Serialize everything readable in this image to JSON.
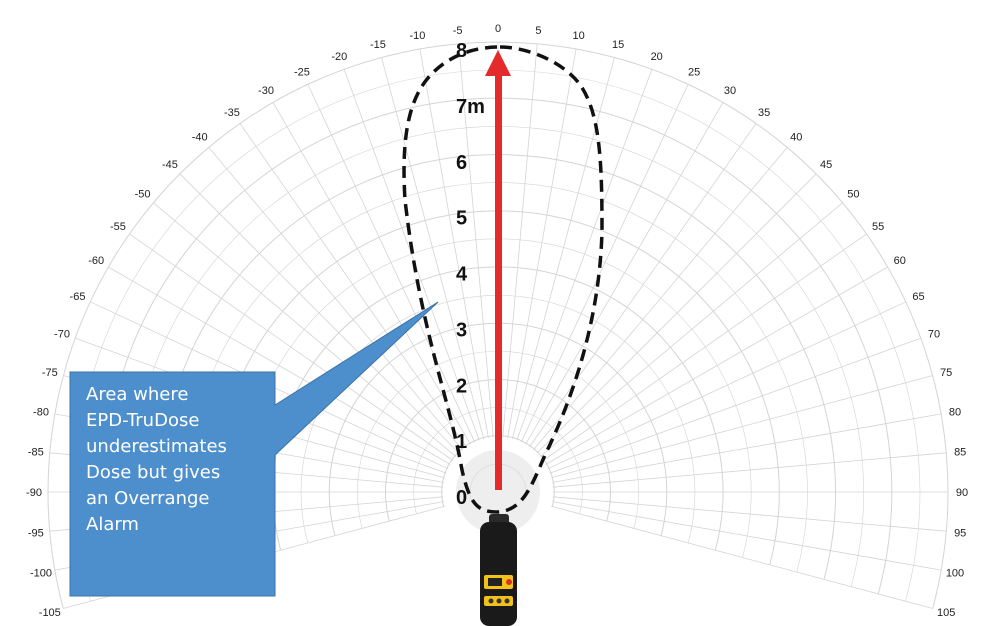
{
  "polar_chart": {
    "angle_labels_left": [
      "-5",
      "-10",
      "-15",
      "-20",
      "-25",
      "-30",
      "-35",
      "-40",
      "-45",
      "-50",
      "-55",
      "-60",
      "-65",
      "-70",
      "-75",
      "-80",
      "-85",
      "-90",
      "-95",
      "-100",
      "-105"
    ],
    "angle_label_center": "0",
    "angle_labels_right": [
      "5",
      "10",
      "15",
      "20",
      "25",
      "30",
      "35",
      "40",
      "45",
      "50",
      "55",
      "60",
      "65",
      "70",
      "75",
      "80",
      "85",
      "90",
      "95",
      "100",
      "105"
    ],
    "distance_labels": [
      "0",
      "1",
      "2",
      "3",
      "4",
      "5",
      "6",
      "7m",
      "8"
    ],
    "max_distance_m": 8,
    "angle_step_deg": 5,
    "grid_color": "#d4d4d4"
  },
  "response_boundary": {
    "style": "dashed",
    "color": "#111111"
  },
  "direction_arrow": {
    "color": "#e32b2b"
  },
  "callout": {
    "lines": [
      "Area where",
      "EPD-TruDose",
      "underestimates",
      "Dose but gives",
      "an Overrange",
      "Alarm"
    ],
    "fill_color": "#4d8fcc"
  },
  "device": {
    "body_color": "#1a1a1a",
    "accent_color": "#f2c21b"
  }
}
